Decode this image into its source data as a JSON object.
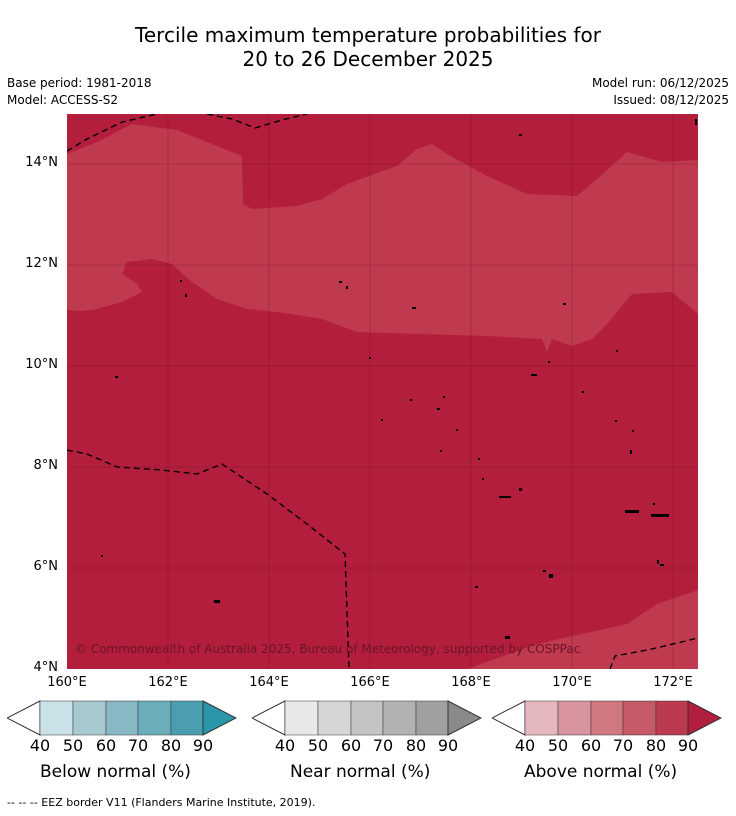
{
  "title": {
    "line1": "Tercile maximum temperature probabilities for",
    "line2": "20 to 26 December 2025"
  },
  "meta": {
    "base_period": "Base period: 1981-2018",
    "model": "Model: ACCESS-S2",
    "model_run": "Model run: 06/12/2025",
    "issued": "Issued: 08/12/2025"
  },
  "map": {
    "lat_labels": [
      "14°N",
      "12°N",
      "10°N",
      "8°N",
      "6°N",
      "4°N"
    ],
    "lon_labels": [
      "160°E",
      "162°E",
      "164°E",
      "166°E",
      "168°E",
      "170°E",
      "172°E"
    ],
    "copyright": "© Commonwealth of Australia 2025, Bureau of Meteorology, supported by COSPPac",
    "colors": {
      "above_80_90": "#b31e3c",
      "above_70_80": "#bf3a4f",
      "eez_border": "#000000"
    }
  },
  "legends": [
    {
      "title": "Below normal (%)",
      "ticks": [
        "40",
        "50",
        "60",
        "70",
        "80",
        "90"
      ],
      "colors": [
        "#c9e1e7",
        "#a8c9d0",
        "#88b9c4",
        "#6aadbb",
        "#4a9eb0",
        "#2a96aa"
      ]
    },
    {
      "title": "Near normal (%)",
      "ticks": [
        "40",
        "50",
        "60",
        "70",
        "80",
        "90"
      ],
      "colors": [
        "#e8e8e8",
        "#d6d6d6",
        "#c4c4c4",
        "#b2b2b2",
        "#a0a0a0",
        "#8a8a8a"
      ]
    },
    {
      "title": "Above normal (%)",
      "ticks": [
        "40",
        "50",
        "60",
        "70",
        "80",
        "90"
      ],
      "colors": [
        "#e4b7bd",
        "#d8959f",
        "#cf7882",
        "#c65a68",
        "#bc3a4f",
        "#b21e3d"
      ]
    }
  ],
  "footnote": "--  --  -- EEZ border V11 (Flanders Marine Institute, 2019)."
}
